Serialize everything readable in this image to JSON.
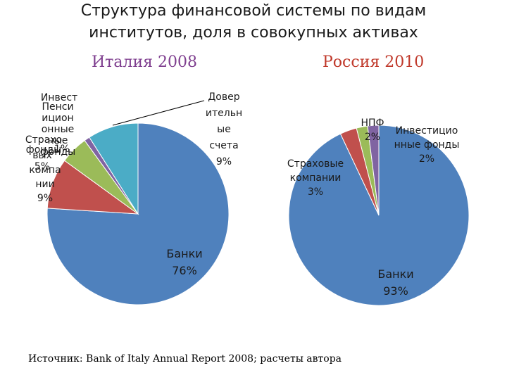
{
  "title_lines": [
    "Структура финансовой системы по видам",
    "институтов, доля в совокупных активах"
  ],
  "source": "Источник: Bank of Italy Annual Report 2008; расчеты автора",
  "colors": {
    "blue": "#4f81bd",
    "red": "#c0504d",
    "green": "#9bbb59",
    "purple": "#8064a2",
    "teal": "#4bacc6"
  },
  "chart_data": [
    {
      "type": "pie",
      "title": "Италия 2008",
      "slices": [
        {
          "name": "Банки",
          "value": 76,
          "label": "Банки 76%",
          "color": "#4f81bd"
        },
        {
          "name": "Страховые компании",
          "value": 9,
          "label": "Страховые компании 9%",
          "color": "#c0504d"
        },
        {
          "name": "Пенсионные фонды",
          "value": 5,
          "label": "Пенсионные фонды 5%",
          "color": "#9bbb59"
        },
        {
          "name": "Инвестиционные фонды",
          "value": 1,
          "label": "Инвестиционные фонды 1%",
          "color": "#8064a2"
        },
        {
          "name": "Доверительные счета",
          "value": 9,
          "label": "Доверительные счета 9%",
          "color": "#4bacc6"
        }
      ]
    },
    {
      "type": "pie",
      "title": "Россия  2010",
      "slices": [
        {
          "name": "Банки",
          "value": 93,
          "label": "Банки 93%",
          "color": "#4f81bd"
        },
        {
          "name": "Страховые компании",
          "value": 3,
          "label": "Страховые компании 3%",
          "color": "#c0504d"
        },
        {
          "name": "НПФ",
          "value": 2,
          "label": "НПФ 2%",
          "color": "#9bbb59"
        },
        {
          "name": "Инвестиционные фонды",
          "value": 2,
          "label": "Инвестиционные фонды 2%",
          "color": "#8064a2"
        }
      ]
    }
  ],
  "left_labels": [
    {
      "lines": [
        "Довер",
        "ительн",
        "ые",
        "счета",
        "9%"
      ]
    },
    {
      "lines": [
        "Банки",
        "76%"
      ]
    },
    {
      "lines": [
        "Инвест"
      ]
    },
    {
      "lines": [
        "Пенси",
        "ицион",
        "онные",
        "ные",
        "фонды"
      ]
    },
    {
      "lines": [
        "Страхо",
        "фонды"
      ]
    },
    {
      "lines": [
        "1%"
      ]
    },
    {
      "lines": [
        "вых",
        "5%"
      ]
    },
    {
      "lines": [
        "компа",
        "нии",
        "9%"
      ]
    }
  ],
  "right_labels": [
    {
      "lines": [
        "НПФ",
        "2%"
      ]
    },
    {
      "lines": [
        "Инвестицио",
        "нные фонды",
        "2%"
      ]
    },
    {
      "lines": [
        "Страховые",
        "компании",
        "3%"
      ]
    },
    {
      "lines": [
        "Банки",
        "93%"
      ]
    }
  ]
}
